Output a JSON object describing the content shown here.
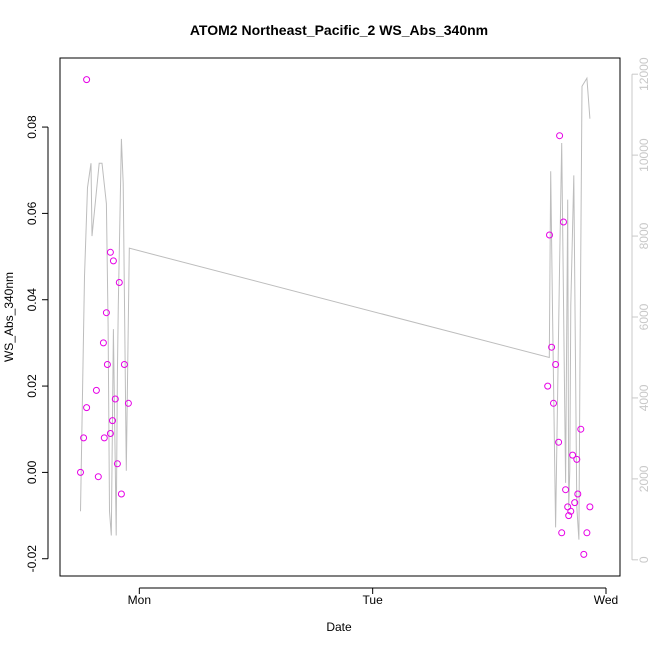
{
  "chart_data": {
    "type": "scatter",
    "title": "ATOM2 Northeast_Pacific_2 WS_Abs_340nm",
    "xlabel": "Date",
    "ylabel": "WS_Abs_340nm",
    "x_ticks": [
      {
        "label": "Mon",
        "day": 1.0
      },
      {
        "label": "Tue",
        "day": 2.0
      },
      {
        "label": "Wed",
        "day": 3.0
      }
    ],
    "xlim_days": [
      0.66,
      3.06
    ],
    "ylim": [
      -0.024,
      0.096
    ],
    "y_ticks": [
      -0.02,
      0.0,
      0.02,
      0.04,
      0.06,
      0.08
    ],
    "y2lim": [
      -400,
      12400
    ],
    "y2_ticks": [
      0,
      2000,
      4000,
      6000,
      8000,
      10000,
      12000
    ],
    "grid": false,
    "series": [
      {
        "kind": "points",
        "color": "#e600e6",
        "points": [
          [
            0.748,
            0.0
          ],
          [
            0.761,
            0.008
          ],
          [
            0.774,
            0.091
          ],
          [
            0.774,
            0.015
          ],
          [
            0.816,
            0.019
          ],
          [
            0.824,
            -0.001
          ],
          [
            0.846,
            0.03
          ],
          [
            0.85,
            0.008
          ],
          [
            0.859,
            0.037
          ],
          [
            0.863,
            0.025
          ],
          [
            0.876,
            0.009
          ],
          [
            0.876,
            0.051
          ],
          [
            0.885,
            0.012
          ],
          [
            0.889,
            0.049
          ],
          [
            0.897,
            0.017
          ],
          [
            0.906,
            0.002
          ],
          [
            0.914,
            0.044
          ],
          [
            0.923,
            -0.005
          ],
          [
            0.936,
            0.025
          ],
          [
            0.953,
            0.016
          ],
          [
            2.75,
            0.02
          ],
          [
            2.758,
            0.055
          ],
          [
            2.767,
            0.029
          ],
          [
            2.775,
            0.016
          ],
          [
            2.784,
            0.025
          ],
          [
            2.797,
            0.007
          ],
          [
            2.801,
            0.078
          ],
          [
            2.81,
            -0.014
          ],
          [
            2.818,
            0.058
          ],
          [
            2.827,
            -0.004
          ],
          [
            2.836,
            -0.008
          ],
          [
            2.84,
            -0.01
          ],
          [
            2.849,
            -0.009
          ],
          [
            2.857,
            0.004
          ],
          [
            2.866,
            -0.007
          ],
          [
            2.875,
            0.003
          ],
          [
            2.879,
            -0.005
          ],
          [
            2.892,
            0.01
          ],
          [
            2.905,
            -0.019
          ],
          [
            2.918,
            -0.014
          ],
          [
            2.931,
            -0.008
          ]
        ]
      },
      {
        "kind": "line",
        "axis": "right",
        "color": "#bdbdbd",
        "points": [
          [
            0.748,
            1200
          ],
          [
            0.765,
            7000
          ],
          [
            0.778,
            9200
          ],
          [
            0.793,
            9800
          ],
          [
            0.797,
            8000
          ],
          [
            0.828,
            9800
          ],
          [
            0.84,
            9800
          ],
          [
            0.859,
            8800
          ],
          [
            0.866,
            5800
          ],
          [
            0.872,
            1200
          ],
          [
            0.88,
            600
          ],
          [
            0.889,
            5700
          ],
          [
            0.901,
            600
          ],
          [
            0.906,
            4600
          ],
          [
            0.91,
            6300
          ],
          [
            0.923,
            10400
          ],
          [
            0.931,
            9300
          ],
          [
            0.944,
            2200
          ],
          [
            0.957,
            7700
          ],
          [
            2.757,
            5000
          ],
          [
            2.763,
            9600
          ],
          [
            2.771,
            6000
          ],
          [
            2.784,
            800
          ],
          [
            2.801,
            7300
          ],
          [
            2.81,
            10300
          ],
          [
            2.818,
            6400
          ],
          [
            2.827,
            1900
          ],
          [
            2.836,
            8900
          ],
          [
            2.84,
            1300
          ],
          [
            2.845,
            2200
          ],
          [
            2.849,
            6300
          ],
          [
            2.862,
            9500
          ],
          [
            2.875,
            1300
          ],
          [
            2.884,
            500
          ],
          [
            2.888,
            4600
          ],
          [
            2.897,
            11700
          ],
          [
            2.918,
            11900
          ],
          [
            2.931,
            10900
          ]
        ]
      }
    ]
  }
}
